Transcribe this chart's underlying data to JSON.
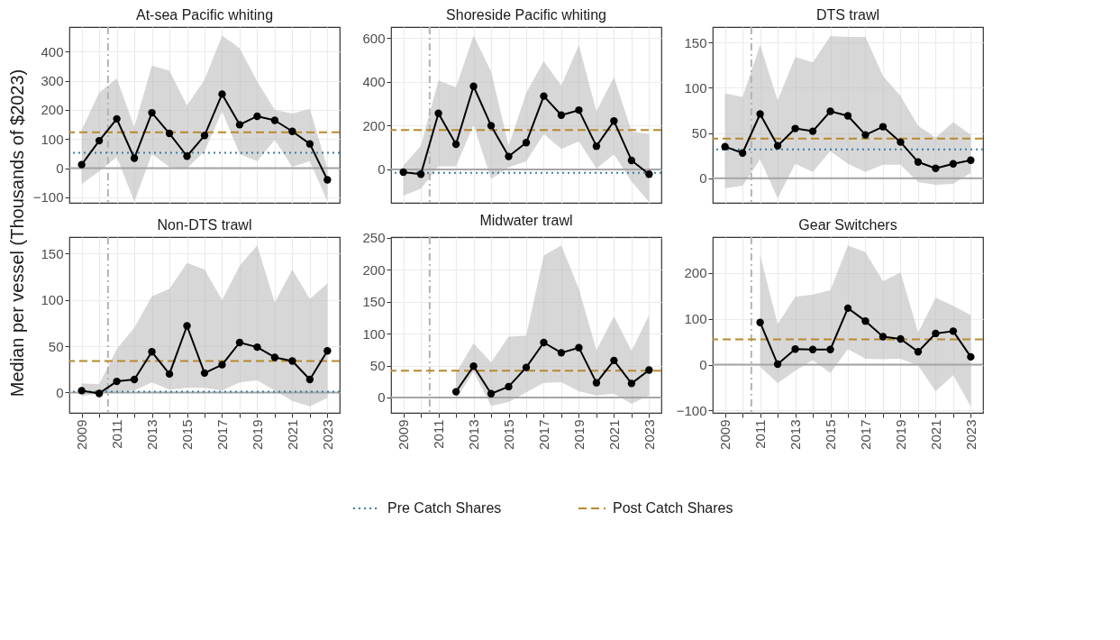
{
  "chart_data": [
    {
      "type": "line",
      "title": "At-sea Pacific whiting",
      "ylabel": "Median per vessel (Thousands of $2023)",
      "legend": "bottom",
      "tick_labels": "y",
      "grid": true,
      "marker": "circle",
      "line_style": "solid",
      "x": [
        2009,
        2010,
        2011,
        2012,
        2013,
        2014,
        2015,
        2016,
        2017,
        2018,
        2019,
        2020,
        2021,
        2022,
        2023
      ],
      "xlim": [
        2008.3,
        2023.7
      ],
      "xticks": [
        2009,
        {
          "value": 2010,
          "label": null
        },
        2011,
        {
          "value": 2012,
          "label": null
        },
        2013,
        {
          "value": 2014,
          "label": null
        },
        2015,
        {
          "value": 2016,
          "label": null
        },
        2017,
        {
          "value": 2018,
          "label": null
        },
        2019,
        {
          "value": 2020,
          "label": null
        },
        2021,
        {
          "value": 2022,
          "label": null
        },
        2023
      ],
      "ylim": [
        -119,
        484
      ],
      "yticks": [
        -100,
        0,
        100,
        200,
        300,
        400
      ],
      "series": [
        {
          "color": "#000000",
          "values": [
            12,
            94,
            169,
            34,
            190,
            119,
            41,
            112,
            254,
            149,
            178,
            164,
            126,
            83,
            -40
          ],
          "lower": [
            -55,
            -11,
            38,
            -115,
            48,
            4,
            -1,
            58,
            195,
            48,
            24,
            97,
            4,
            24,
            -114
          ],
          "upper": [
            131,
            259,
            308,
            141,
            352,
            334,
            215,
            303,
            455,
            411,
            298,
            200,
            187,
            203,
            0
          ]
        }
      ],
      "ref_lines": [
        {
          "axis": "y",
          "value": 0,
          "color": "#a6a6a6",
          "line_style": "solid"
        },
        {
          "axis": "x",
          "value": 2010.5,
          "color": "#b3b3b3",
          "line_style": "dashdot"
        },
        {
          "axis": "y",
          "value": 53,
          "label": "Pre Catch Shares",
          "color": "#3b7ea1",
          "line_style": "dotted"
        },
        {
          "axis": "y",
          "value": 123,
          "label": "Post Catch Shares",
          "color": "#b8892c",
          "line_style": "dashed"
        }
      ]
    },
    {
      "type": "line",
      "title": "Shoreside Pacific whiting",
      "tick_labels": "y",
      "grid": true,
      "marker": "circle",
      "line_style": "solid",
      "x": [
        2009,
        2010,
        2011,
        2012,
        2013,
        2014,
        2015,
        2016,
        2017,
        2018,
        2019,
        2020,
        2021,
        2022,
        2023
      ],
      "xlim": [
        2008.3,
        2023.7
      ],
      "xticks": [
        2009,
        {
          "value": 2010,
          "label": null
        },
        2011,
        {
          "value": 2012,
          "label": null
        },
        2013,
        {
          "value": 2014,
          "label": null
        },
        2015,
        {
          "value": 2016,
          "label": null
        },
        2017,
        {
          "value": 2018,
          "label": null
        },
        2019,
        {
          "value": 2020,
          "label": null
        },
        2021,
        {
          "value": 2022,
          "label": null
        },
        2023
      ],
      "ylim": [
        -153,
        651
      ],
      "yticks": [
        0,
        200,
        400,
        600
      ],
      "series": [
        {
          "color": "#000000",
          "values": [
            -13,
            -22,
            256,
            115,
            380,
            200,
            59,
            122,
            335,
            248,
            271,
            106,
            221,
            41,
            -22
          ],
          "lower": [
            -120,
            -88,
            14,
            14,
            204,
            -44,
            10,
            37,
            161,
            93,
            128,
            4,
            69,
            -55,
            -150
          ],
          "upper": [
            17,
            108,
            407,
            376,
            612,
            448,
            108,
            350,
            494,
            383,
            569,
            265,
            422,
            174,
            161
          ]
        }
      ],
      "ref_lines": [
        {
          "axis": "y",
          "value": 0,
          "color": "#a6a6a6",
          "line_style": "solid"
        },
        {
          "axis": "x",
          "value": 2010.5,
          "color": "#b3b3b3",
          "line_style": "dashdot"
        },
        {
          "axis": "y",
          "value": -16,
          "color": "#3b7ea1",
          "line_style": "dotted"
        },
        {
          "axis": "y",
          "value": 180,
          "color": "#b8892c",
          "line_style": "dashed"
        }
      ]
    },
    {
      "type": "line",
      "title": "DTS trawl",
      "tick_labels": "y",
      "grid": true,
      "marker": "circle",
      "line_style": "solid",
      "x": [
        2009,
        2010,
        2011,
        2012,
        2013,
        2014,
        2015,
        2016,
        2017,
        2018,
        2019,
        2020,
        2021,
        2022,
        2023
      ],
      "xlim": [
        2008.3,
        2023.7
      ],
      "xticks": [
        2009,
        {
          "value": 2010,
          "label": null
        },
        2011,
        {
          "value": 2012,
          "label": null
        },
        2013,
        {
          "value": 2014,
          "label": null
        },
        2015,
        {
          "value": 2016,
          "label": null
        },
        2017,
        {
          "value": 2018,
          "label": null
        },
        2019,
        {
          "value": 2020,
          "label": null
        },
        2021,
        {
          "value": 2022,
          "label": null
        },
        2023
      ],
      "ylim": [
        -27,
        167
      ],
      "yticks": [
        0,
        50,
        100,
        150
      ],
      "series": [
        {
          "color": "#000000",
          "values": [
            35,
            28,
            71,
            36,
            55,
            52,
            74,
            69,
            48,
            57,
            40,
            18,
            11,
            16,
            20
          ],
          "lower": [
            -11,
            -8,
            21,
            -22,
            16,
            7,
            30,
            16,
            7,
            15,
            15,
            -4,
            -7,
            -6,
            6
          ],
          "upper": [
            94,
            90,
            147,
            86,
            134,
            128,
            157,
            156,
            156,
            113,
            91,
            58,
            45,
            62,
            48
          ]
        }
      ],
      "ref_lines": [
        {
          "axis": "y",
          "value": 0,
          "color": "#a6a6a6",
          "line_style": "solid"
        },
        {
          "axis": "x",
          "value": 2010.5,
          "color": "#b3b3b3",
          "line_style": "dashdot"
        },
        {
          "axis": "y",
          "value": 32,
          "color": "#3b7ea1",
          "line_style": "dotted"
        },
        {
          "axis": "y",
          "value": 44,
          "color": "#b8892c",
          "line_style": "dashed"
        }
      ]
    },
    {
      "type": "line",
      "title": "Non-DTS trawl",
      "grid": true,
      "marker": "circle",
      "line_style": "solid",
      "x": [
        2009,
        2010,
        2011,
        2012,
        2013,
        2014,
        2015,
        2016,
        2017,
        2018,
        2019,
        2020,
        2021,
        2022,
        2023
      ],
      "xlim": [
        2008.3,
        2023.7
      ],
      "xticks": [
        2009,
        {
          "value": 2010,
          "label": null
        },
        2011,
        {
          "value": 2012,
          "label": null
        },
        2013,
        {
          "value": 2014,
          "label": null
        },
        2015,
        {
          "value": 2016,
          "label": null
        },
        2017,
        {
          "value": 2018,
          "label": null
        },
        2019,
        {
          "value": 2020,
          "label": null
        },
        2021,
        {
          "value": 2022,
          "label": null
        },
        2023
      ],
      "ylim": [
        -22,
        168
      ],
      "yticks": [
        0,
        50,
        100,
        150
      ],
      "series": [
        {
          "color": "#000000",
          "values": [
            2,
            -1,
            12,
            14,
            44,
            20,
            72,
            21,
            30,
            54,
            49,
            38,
            34,
            14,
            45
          ],
          "lower": [
            -4,
            -1,
            1,
            2,
            11,
            3,
            5,
            5,
            2,
            11,
            13,
            2,
            -9,
            -15,
            -6
          ],
          "upper": [
            10,
            9,
            47,
            70,
            104,
            112,
            140,
            133,
            100,
            137,
            159,
            97,
            133,
            101,
            118
          ]
        }
      ],
      "ref_lines": [
        {
          "axis": "y",
          "value": 0,
          "color": "#a6a6a6",
          "line_style": "solid"
        },
        {
          "axis": "x",
          "value": 2010.5,
          "color": "#b3b3b3",
          "line_style": "dashdot"
        },
        {
          "axis": "y",
          "value": 1,
          "color": "#3b7ea1",
          "line_style": "dotted"
        },
        {
          "axis": "y",
          "value": 34,
          "color": "#b8892c",
          "line_style": "dashed"
        }
      ]
    },
    {
      "type": "line",
      "title": "Midwater trawl",
      "grid": true,
      "marker": "circle",
      "line_style": "solid",
      "x": [
        2012,
        2013,
        2014,
        2015,
        2016,
        2017,
        2018,
        2019,
        2020,
        2021,
        2022,
        2023
      ],
      "xlim": [
        2008.3,
        2023.7
      ],
      "xticks": [
        2009,
        {
          "value": 2010,
          "label": null
        },
        2011,
        {
          "value": 2012,
          "label": null
        },
        2013,
        {
          "value": 2014,
          "label": null
        },
        2015,
        {
          "value": 2016,
          "label": null
        },
        2017,
        {
          "value": 2018,
          "label": null
        },
        2019,
        {
          "value": 2020,
          "label": null
        },
        2021,
        {
          "value": 2022,
          "label": null
        },
        2023
      ],
      "ylim": [
        -24,
        251
      ],
      "yticks": [
        0,
        50,
        100,
        150,
        200,
        250
      ],
      "series": [
        {
          "color": "#000000",
          "values": [
            9,
            49,
            6,
            17,
            47,
            86,
            70,
            78,
            23,
            58,
            22,
            43
          ],
          "lower": [
            -3,
            40,
            -13,
            -7,
            8,
            23,
            24,
            10,
            3,
            6,
            -10,
            3
          ],
          "upper": [
            38,
            85,
            55,
            95,
            97,
            222,
            238,
            170,
            74,
            127,
            73,
            129
          ]
        }
      ],
      "ref_lines": [
        {
          "axis": "y",
          "value": 0,
          "color": "#a6a6a6",
          "line_style": "solid"
        },
        {
          "axis": "x",
          "value": 2010.5,
          "color": "#b3b3b3",
          "line_style": "dashdot"
        },
        {
          "axis": "y",
          "value": 42,
          "color": "#b8892c",
          "line_style": "dashed"
        }
      ]
    },
    {
      "type": "line",
      "title": "Gear Switchers",
      "grid": true,
      "marker": "circle",
      "line_style": "solid",
      "x": [
        2011,
        2012,
        2013,
        2014,
        2015,
        2016,
        2017,
        2018,
        2019,
        2020,
        2021,
        2022,
        2023
      ],
      "xlim": [
        2008.3,
        2023.7
      ],
      "xticks": [
        2009,
        {
          "value": 2010,
          "label": null
        },
        2011,
        {
          "value": 2012,
          "label": null
        },
        2013,
        {
          "value": 2014,
          "label": null
        },
        2015,
        {
          "value": 2016,
          "label": null
        },
        2017,
        {
          "value": 2018,
          "label": null
        },
        2019,
        {
          "value": 2020,
          "label": null
        },
        2021,
        {
          "value": 2022,
          "label": null
        },
        2023
      ],
      "ylim": [
        -105,
        278
      ],
      "yticks": [
        -100,
        0,
        100,
        200
      ],
      "series": [
        {
          "color": "#000000",
          "values": [
            92,
            1,
            34,
            33,
            33,
            123,
            95,
            61,
            56,
            28,
            68,
            73,
            17
          ],
          "lower": [
            -5,
            -40,
            -13,
            10,
            -18,
            34,
            13,
            12,
            13,
            -2,
            -58,
            -23,
            -91
          ],
          "upper": [
            239,
            88,
            148,
            153,
            162,
            260,
            245,
            182,
            201,
            70,
            146,
            128,
            108
          ]
        }
      ],
      "ref_lines": [
        {
          "axis": "y",
          "value": 0,
          "color": "#a6a6a6",
          "line_style": "solid"
        },
        {
          "axis": "x",
          "value": 2010.5,
          "color": "#b3b3b3",
          "line_style": "dashdot"
        },
        {
          "axis": "y",
          "value": 55,
          "color": "#b8892c",
          "line_style": "dashed"
        }
      ]
    }
  ]
}
